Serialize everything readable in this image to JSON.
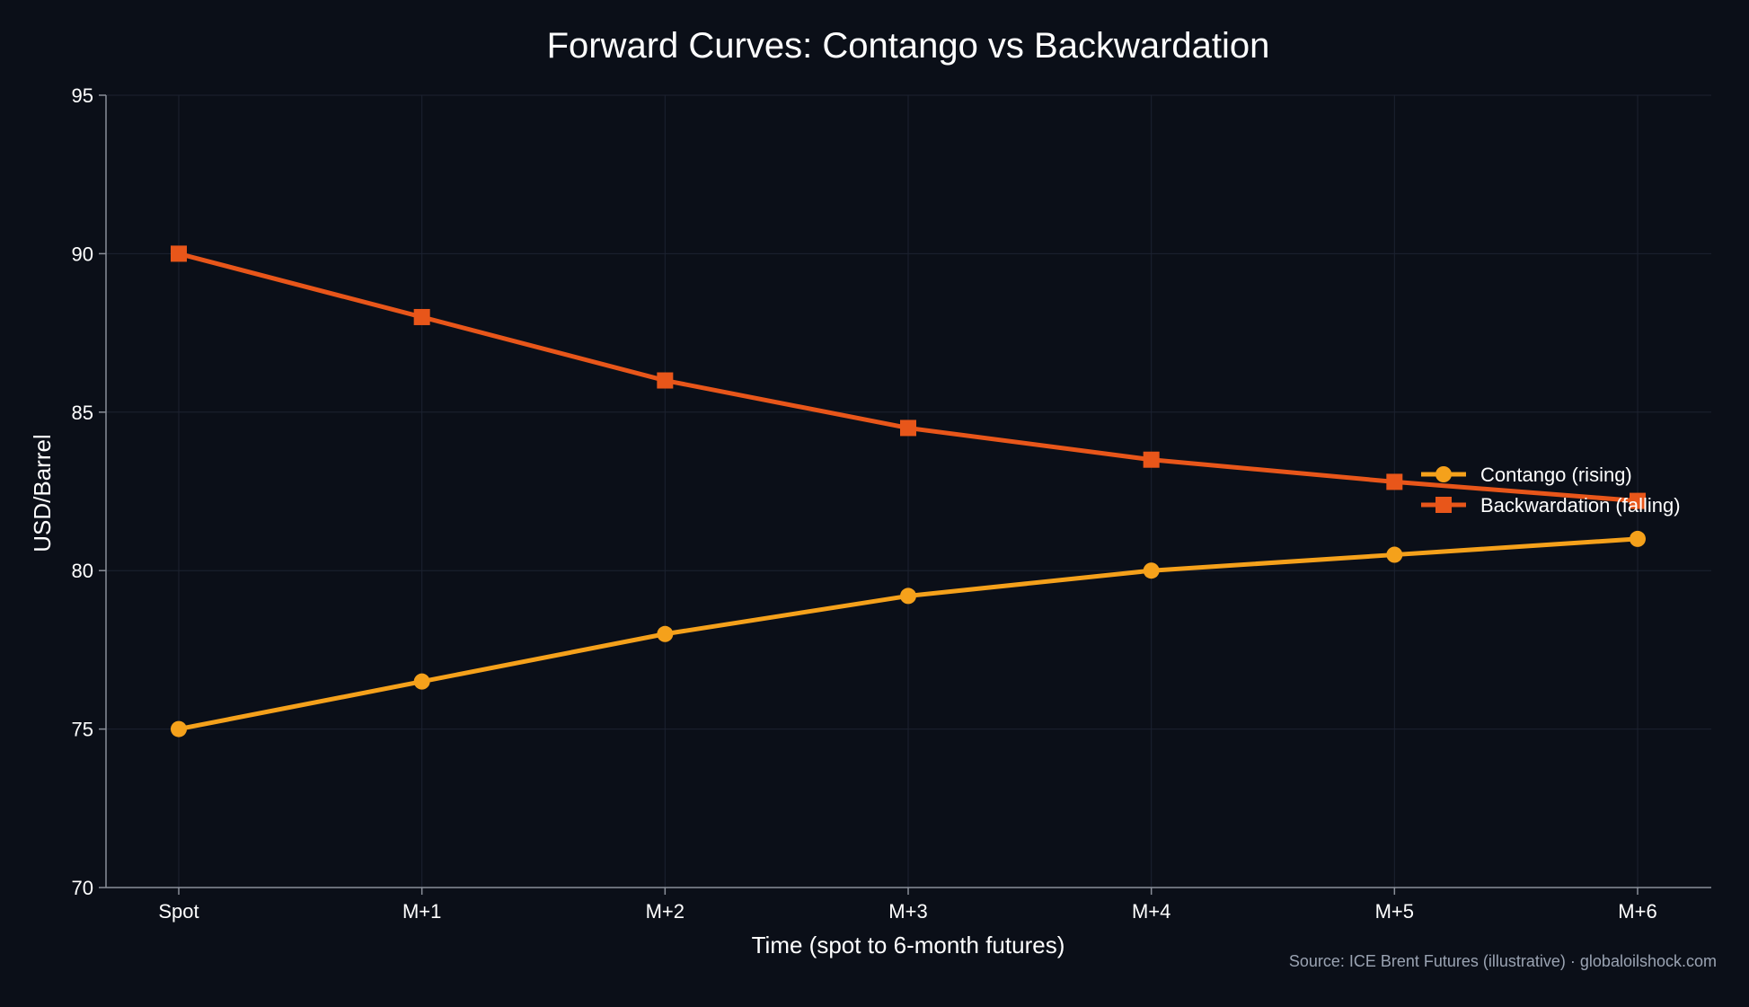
{
  "colors": {
    "background": "#0b0f18",
    "axis": "#8a8f99",
    "grid": "#1c2230",
    "text": "#ffffff",
    "source_text": "#9aa3b2",
    "contango": "#f5a11b",
    "backwardation": "#e8561a"
  },
  "chart_data": {
    "type": "line",
    "title": "Forward Curves: Contango vs Backwardation",
    "xlabel": "Time (spot to 6-month futures)",
    "ylabel": "USD/Barrel",
    "categories": [
      "Spot",
      "M+1",
      "M+2",
      "M+3",
      "M+4",
      "M+5",
      "M+6"
    ],
    "ylim": [
      70,
      95
    ],
    "yticks": [
      70,
      75,
      80,
      85,
      90,
      95
    ],
    "grid": true,
    "legend_position": "right",
    "series": [
      {
        "name": "Contango (rising)",
        "marker": "circle",
        "color": "#f5a11b",
        "values": [
          75,
          76.5,
          78,
          79.2,
          80,
          80.5,
          81
        ]
      },
      {
        "name": "Backwardation (falling)",
        "marker": "square",
        "color": "#e8561a",
        "values": [
          90,
          88,
          86,
          84.5,
          83.5,
          82.8,
          82.2
        ]
      }
    ],
    "source_note": "Source: ICE Brent Futures (illustrative) · globaloilshock.com"
  }
}
